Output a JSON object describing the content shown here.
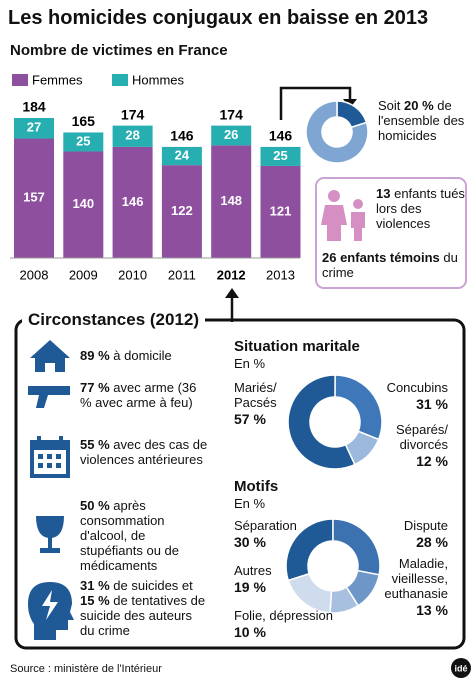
{
  "header": {
    "title": "Les homicides conjugaux en baisse en 2013",
    "subtitle": "Nombre de victimes en France"
  },
  "chart_data": [
    {
      "type": "stacked-bar",
      "categories": [
        "2008",
        "2009",
        "2010",
        "2011",
        "2012",
        "2013"
      ],
      "series": [
        {
          "name": "Femmes",
          "color": "#8e4f9e",
          "values": [
            157,
            140,
            146,
            122,
            148,
            121
          ]
        },
        {
          "name": "Hommes",
          "color": "#27aeb0",
          "values": [
            27,
            25,
            28,
            24,
            26,
            25
          ]
        }
      ],
      "totals": [
        184,
        165,
        174,
        146,
        174,
        146
      ]
    },
    {
      "type": "pie",
      "values": [
        20,
        80
      ],
      "value_labels": [
        "20 %",
        null
      ],
      "colors": [
        "#1f5a96",
        "#7fa6d3"
      ],
      "text_before": "Soit",
      "text_after": "de l'ensemble des homicides"
    },
    {
      "type": "donut",
      "title": "Situation maritale",
      "subtitle": "En %",
      "categories": [
        "Mariés/\nPacsés",
        "Concubins",
        "Séparés/\ndivorcés"
      ],
      "values": [
        57,
        31,
        12
      ],
      "value_labels": [
        "57 %",
        "31 %",
        "12 %"
      ],
      "colors": [
        "#1f5a96",
        "#3f78b8",
        "#9bb9dd"
      ]
    },
    {
      "type": "donut",
      "title": "Motifs",
      "subtitle": "En %",
      "categories": [
        "Séparation",
        "Dispute",
        "Maladie,\nvieillesse,\neuthanasie",
        "Folie, dépression",
        "Autres"
      ],
      "values": [
        30,
        28,
        13,
        10,
        19
      ],
      "value_labels": [
        "30 %",
        "28 %",
        "13 %",
        "10 %",
        "19 %"
      ],
      "colors": [
        "#1f5a96",
        "#3d72b0",
        "#6e97c8",
        "#a7c0e0",
        "#cfdcee"
      ]
    }
  ],
  "children": {
    "items": [
      {
        "parts": [
          {
            "text": "13",
            "bold": true
          },
          {
            "text": "enfants tués lors des violences"
          }
        ]
      },
      {
        "parts": [
          {
            "text": "26 enfants témoins",
            "bold": true
          },
          {
            "text": "du crime"
          }
        ]
      }
    ]
  },
  "circumstances": {
    "title": "Circonstances (2012)",
    "items": [
      {
        "parts": [
          {
            "text": "89 %",
            "bold": true
          },
          {
            "text": "à domicile"
          }
        ]
      },
      {
        "parts": [
          {
            "text": "77 %",
            "bold": true
          },
          {
            "text": "avec arme (36 % avec arme à feu)"
          }
        ]
      },
      {
        "parts": [
          {
            "text": "55 %",
            "bold": true
          },
          {
            "text": "avec des cas de violences antérieures"
          }
        ]
      },
      {
        "parts": [
          {
            "text": "50 %",
            "bold": true
          },
          {
            "text": "après consommation d'alcool, de stupéfiants ou de médicaments"
          }
        ]
      },
      {
        "parts": [
          {
            "text": "31 %",
            "bold": true
          },
          {
            "text": "de suicides et"
          },
          {
            "text": "15 %",
            "bold": true
          },
          {
            "text": "de tentatives de suicide des auteurs du crime"
          }
        ]
      }
    ]
  },
  "source": "Source : ministère de l'Intérieur",
  "logo": "idé"
}
